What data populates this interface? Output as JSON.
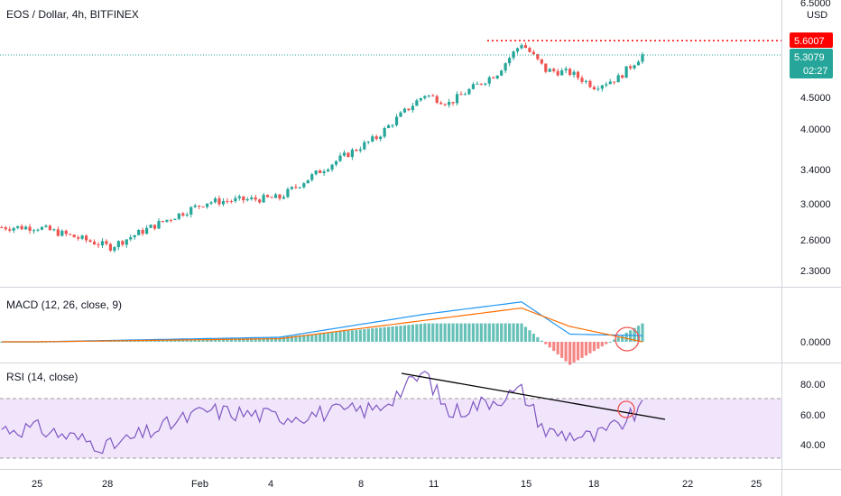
{
  "header": {
    "symbol_title": "EOS / Dollar, 4h, BITFINEX",
    "currency": "USD"
  },
  "price_axis": {
    "ticks": [
      "6.5000",
      "4.5000",
      "4.0000",
      "3.4000",
      "3.0000",
      "2.6000",
      "2.3000"
    ],
    "tick_values": [
      6.5,
      4.5,
      4.0,
      3.4,
      3.0,
      2.6,
      2.3
    ],
    "resistance_label": "5.6007",
    "last_price_label": "5.3079",
    "countdown_label": "02:27",
    "scale": "log"
  },
  "macd_panel": {
    "title": "MACD (12, 26, close, 9)",
    "ticks": [
      "0.0000"
    ]
  },
  "rsi_panel": {
    "title": "RSI (14, close)",
    "ticks": [
      "80.00",
      "60.00",
      "40.00"
    ],
    "tick_values": [
      80,
      60,
      40
    ],
    "band_upper": 70,
    "band_lower": 30
  },
  "x_axis": {
    "ticks": [
      "25",
      "28",
      "Feb",
      "4",
      "8",
      "11",
      "15",
      "18",
      "22",
      "25"
    ]
  },
  "colors": {
    "up": "#26a69a",
    "down": "#ef5350",
    "resistance": "#ff0000",
    "last_price": "#26a69a",
    "macd_line": "#2196f3",
    "signal_line": "#ff6d00",
    "rsi_line": "#7e57c2",
    "rsi_band": "#e6d4f7",
    "annotation": "#ef5350",
    "trendline": "#000000"
  },
  "chart_data": {
    "type": "candlestick",
    "timeframe": "4h",
    "price_anchors": [
      {
        "date": "Jan 25",
        "close": 2.72
      },
      {
        "date": "Jan 28",
        "close": 2.52
      },
      {
        "date": "Feb 1",
        "close": 3.0
      },
      {
        "date": "Feb 4",
        "close": 3.05
      },
      {
        "date": "Feb 8",
        "close": 3.85
      },
      {
        "date": "Feb 10",
        "close": 4.55
      },
      {
        "date": "Feb 11",
        "close": 4.4
      },
      {
        "date": "Feb 13",
        "close": 4.95
      },
      {
        "date": "Feb 14",
        "close": 5.55
      },
      {
        "date": "Feb 15",
        "close": 5.0
      },
      {
        "date": "Feb 16",
        "close": 4.95
      },
      {
        "date": "Feb 17",
        "close": 4.7
      },
      {
        "date": "Feb 18",
        "close": 4.85
      },
      {
        "date": "Feb 19",
        "close": 5.3079
      }
    ],
    "resistance_level": 5.6007,
    "last_price": 5.3079,
    "rsi_approx": [
      {
        "date": "Jan 25",
        "value": 50
      },
      {
        "date": "Jan 28",
        "value": 38
      },
      {
        "date": "Feb 1",
        "value": 62
      },
      {
        "date": "Feb 4",
        "value": 58
      },
      {
        "date": "Feb 8",
        "value": 63
      },
      {
        "date": "Feb 10",
        "value": 87
      },
      {
        "date": "Feb 11",
        "value": 60
      },
      {
        "date": "Feb 14",
        "value": 75
      },
      {
        "date": "Feb 15",
        "value": 48
      },
      {
        "date": "Feb 17",
        "value": 44
      },
      {
        "date": "Feb 18",
        "value": 52
      },
      {
        "date": "Feb 19",
        "value": 63
      }
    ],
    "rsi_trendline": [
      {
        "date": "Feb 10",
        "value": 88
      },
      {
        "date": "Feb 20",
        "value": 56
      }
    ],
    "macd_approx": [
      {
        "date": "Jan 25",
        "macd": 0.0,
        "signal": 0.0
      },
      {
        "date": "Feb 4",
        "macd": 0.03,
        "signal": 0.02
      },
      {
        "date": "Feb 10",
        "macd": 0.18,
        "signal": 0.14
      },
      {
        "date": "Feb 14",
        "macd": 0.26,
        "signal": 0.22
      },
      {
        "date": "Feb 16",
        "macd": 0.05,
        "signal": 0.1
      },
      {
        "date": "Feb 19",
        "macd": 0.04,
        "signal": 0.0
      }
    ]
  }
}
